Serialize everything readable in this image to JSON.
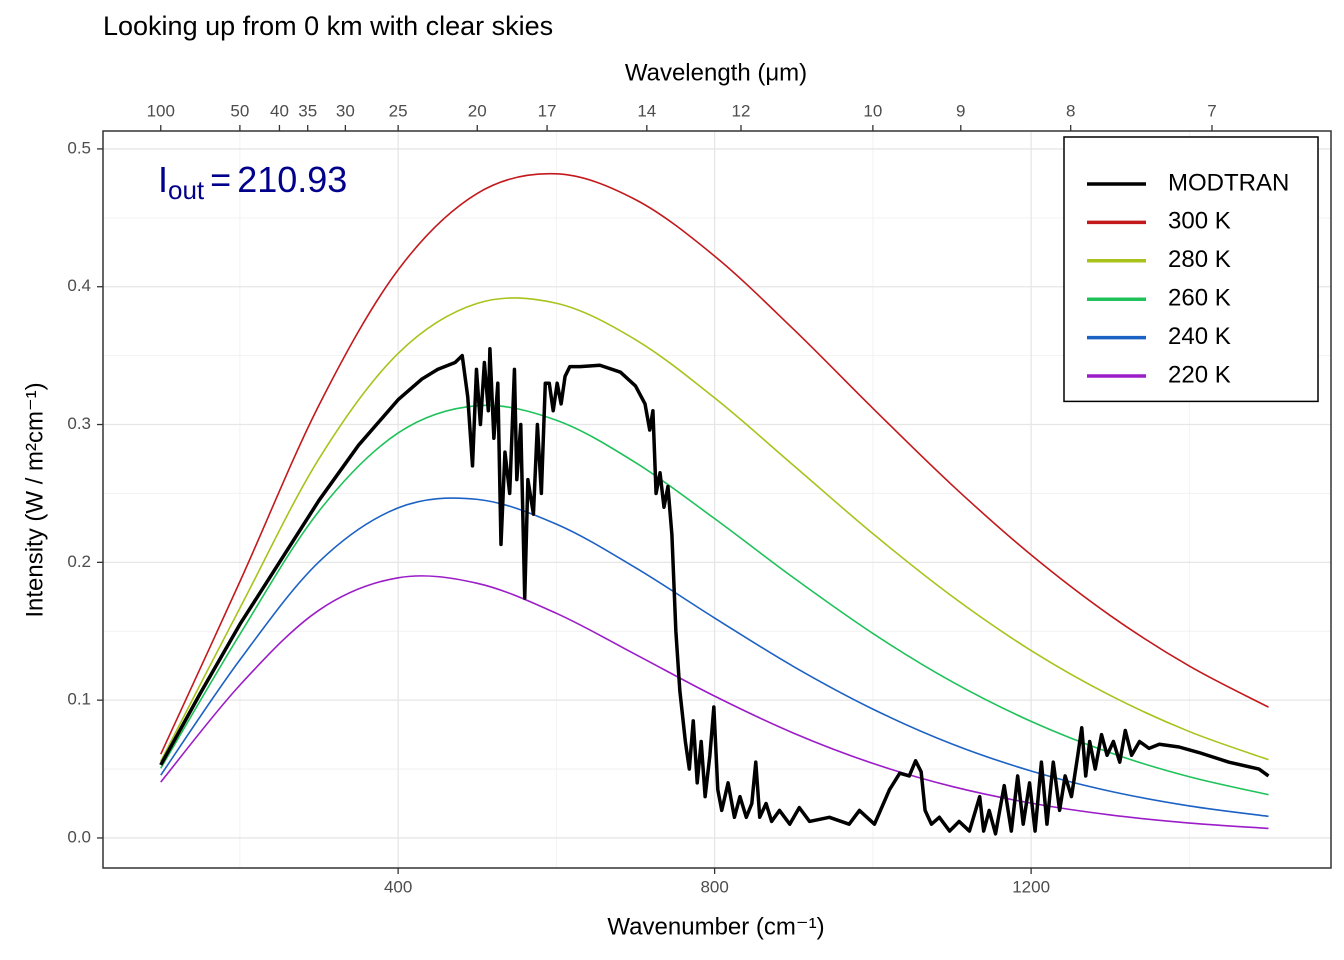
{
  "chart_data": {
    "type": "line",
    "title": "Looking up from 0 km with clear skies",
    "xlabel": "Wavenumber (cm⁻¹)",
    "ylabel": "Intensity (W / m²cm⁻¹)",
    "x2label": "Wavelength (μm)",
    "annotation": {
      "symbol": "I",
      "subscript": "out",
      "equals": "=",
      "value": 210.93,
      "color": "#00008b"
    },
    "xlim": [
      27,
      1579
    ],
    "ylim": [
      -0.0218,
      0.513
    ],
    "xticks": [
      400,
      800,
      1200
    ],
    "yticks": [
      {
        "value": 0,
        "label": "0.0"
      },
      0.1,
      0.2,
      0.3,
      0.4,
      0.5
    ],
    "xminor": [
      200,
      600,
      1000,
      1400
    ],
    "yminor": [
      0.05,
      0.15,
      0.25,
      0.35,
      0.45
    ],
    "x2ticks": [
      100,
      {
        "value": 200,
        "label": "50"
      },
      {
        "value": 250,
        "label": "40"
      },
      {
        "value": 285.714,
        "label": "35"
      },
      {
        "value": 333.333,
        "label": "30"
      },
      {
        "value": 400,
        "label": "25"
      },
      {
        "value": 500,
        "label": "20"
      },
      {
        "value": 588.235,
        "label": "17"
      },
      {
        "value": 714.286,
        "label": "14"
      },
      {
        "value": 833.333,
        "label": "12"
      },
      {
        "value": 1000,
        "label": "10"
      },
      {
        "value": 1111.111,
        "label": "9"
      },
      {
        "value": 1250,
        "label": "8"
      },
      {
        "value": 1428.571,
        "label": "7"
      }
    ],
    "grid": true,
    "legend": "top-right",
    "series": [
      {
        "name": "MODTRAN",
        "color": "#000000",
        "width": 3.5,
        "x": [
          100,
          150,
          200,
          250,
          300,
          350,
          400,
          430,
          450,
          472,
          481,
          488,
          494,
          499,
          504,
          509,
          514,
          516,
          521,
          526,
          530,
          535,
          541,
          547,
          550,
          555,
          560,
          564,
          571,
          576,
          581,
          586,
          591,
          596,
          601,
          606,
          611,
          617,
          630,
          655,
          681,
          700,
          712,
          718,
          722,
          726,
          731,
          736,
          741,
          746,
          751,
          756,
          763,
          768,
          773,
          778,
          783,
          788,
          794,
          799,
          804,
          809,
          817,
          825,
          832,
          840,
          847,
          852,
          857,
          865,
          872,
          882,
          895,
          907,
          920,
          945,
          970,
          983,
          1002,
          1021,
          1034,
          1046,
          1054,
          1061,
          1066,
          1074,
          1084,
          1097,
          1109,
          1122,
          1135,
          1140,
          1147,
          1155,
          1166,
          1175,
          1183,
          1190,
          1198,
          1205,
          1213,
          1220,
          1228,
          1236,
          1243,
          1251,
          1259,
          1264,
          1269,
          1274,
          1281,
          1289,
          1296,
          1304,
          1312,
          1319,
          1327,
          1337,
          1349,
          1362,
          1387,
          1412,
          1450,
          1488,
          1500
        ],
        "values": [
          0.053,
          0.105,
          0.155,
          0.2,
          0.245,
          0.285,
          0.318,
          0.333,
          0.34,
          0.345,
          0.35,
          0.32,
          0.27,
          0.34,
          0.3,
          0.345,
          0.31,
          0.355,
          0.29,
          0.33,
          0.213,
          0.28,
          0.25,
          0.34,
          0.26,
          0.3,
          0.174,
          0.26,
          0.235,
          0.3,
          0.25,
          0.33,
          0.33,
          0.31,
          0.33,
          0.315,
          0.335,
          0.342,
          0.342,
          0.343,
          0.338,
          0.328,
          0.315,
          0.296,
          0.31,
          0.25,
          0.265,
          0.24,
          0.255,
          0.22,
          0.15,
          0.107,
          0.07,
          0.05,
          0.085,
          0.04,
          0.07,
          0.03,
          0.06,
          0.095,
          0.035,
          0.02,
          0.04,
          0.015,
          0.03,
          0.015,
          0.025,
          0.055,
          0.015,
          0.025,
          0.012,
          0.02,
          0.01,
          0.022,
          0.012,
          0.015,
          0.01,
          0.02,
          0.01,
          0.035,
          0.047,
          0.045,
          0.056,
          0.048,
          0.02,
          0.01,
          0.015,
          0.005,
          0.012,
          0.005,
          0.03,
          0.005,
          0.02,
          0.003,
          0.038,
          0.005,
          0.045,
          0.01,
          0.04,
          0.005,
          0.055,
          0.01,
          0.055,
          0.02,
          0.045,
          0.03,
          0.06,
          0.08,
          0.045,
          0.07,
          0.05,
          0.075,
          0.06,
          0.07,
          0.055,
          0.078,
          0.06,
          0.07,
          0.065,
          0.068,
          0.066,
          0.062,
          0.055,
          0.05,
          0.045
        ]
      },
      {
        "name": "300 K",
        "color": "#c3191c",
        "width": 1.6,
        "x": [
          100,
          200,
          300,
          400,
          500,
          600,
          700,
          800,
          900,
          1000,
          1100,
          1200,
          1300,
          1400,
          1500
        ],
        "values": [
          0.0608,
          0.186,
          0.3141,
          0.4122,
          0.4677,
          0.4819,
          0.4632,
          0.4222,
          0.369,
          0.3118,
          0.2561,
          0.2054,
          0.1614,
          0.1247,
          0.0949
        ]
      },
      {
        "name": "280 K",
        "color": "#a9c21c",
        "width": 1.6,
        "x": [
          100,
          200,
          300,
          400,
          500,
          600,
          700,
          800,
          900,
          1000,
          1100,
          1200,
          1300,
          1400,
          1500
        ],
        "values": [
          0.0557,
          0.1668,
          0.2752,
          0.3516,
          0.3879,
          0.388,
          0.3616,
          0.3193,
          0.2702,
          0.2208,
          0.1754,
          0.136,
          0.1034,
          0.0772,
          0.0568
        ]
      },
      {
        "name": "260 K",
        "color": "#1fc25a",
        "width": 1.6,
        "x": [
          100,
          200,
          300,
          400,
          500,
          600,
          700,
          800,
          900,
          1000,
          1100,
          1200,
          1300,
          1400,
          1500
        ],
        "values": [
          0.0506,
          0.1478,
          0.2372,
          0.2939,
          0.3137,
          0.3031,
          0.2724,
          0.2317,
          0.1887,
          0.1484,
          0.1134,
          0.0846,
          0.0618,
          0.0444,
          0.0314
        ]
      },
      {
        "name": "240 K",
        "color": "#1c62c4",
        "width": 1.6,
        "x": [
          100,
          200,
          300,
          400,
          500,
          600,
          700,
          800,
          900,
          1000,
          1100,
          1200,
          1300,
          1400,
          1500
        ],
        "values": [
          0.04557,
          0.1292,
          0.2004,
          0.2395,
          0.2457,
          0.2277,
          0.1961,
          0.1596,
          0.1243,
          0.0935,
          0.0682,
          0.0486,
          0.0339,
          0.02326,
          0.0157
        ]
      },
      {
        "name": "220 K",
        "color": "#9c1cc8",
        "width": 1.6,
        "x": [
          100,
          200,
          300,
          400,
          500,
          600,
          700,
          800,
          900,
          1000,
          1100,
          1200,
          1300,
          1400,
          1500
        ],
        "values": [
          0.04053,
          0.1109,
          0.1653,
          0.1888,
          0.1848,
          0.163,
          0.1332,
          0.1029,
          0.076,
          0.0541,
          0.0374,
          0.02526,
          0.0167,
          0.01084,
          0.00693
        ]
      }
    ]
  }
}
